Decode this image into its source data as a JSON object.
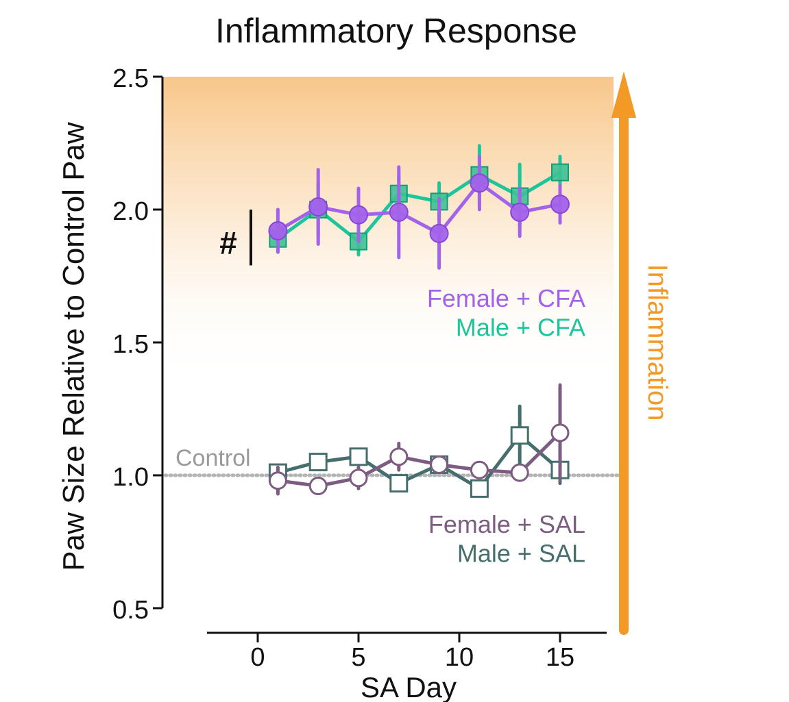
{
  "chart_data": {
    "type": "line",
    "title": "Inflammatory Response",
    "xlabel": "SA Day",
    "ylabel": "Paw Size Relative to Control Paw",
    "xlim": [
      -2.5,
      17.5
    ],
    "ylim": [
      0.5,
      2.5
    ],
    "x_ticks": [
      0,
      5,
      10,
      15
    ],
    "x_tick_labels": [
      "0",
      "5",
      "10",
      "15"
    ],
    "y_ticks": [
      0.5,
      1.0,
      1.5,
      2.0,
      2.5
    ],
    "y_tick_labels": [
      "0.5",
      "1.0",
      "1.5",
      "2.0",
      "2.5"
    ],
    "grid": false,
    "reference_line": {
      "y": 1.0,
      "label": "Control",
      "color": "#b3b3b3"
    },
    "significance_marker": {
      "label": "#",
      "y_range": [
        1.79,
        2.0
      ]
    },
    "inflammation_arrow": {
      "label": "Inflammation",
      "color": "#f39a26"
    },
    "background_gradient": {
      "from_y": 2.5,
      "to_y": 1.35,
      "color": "#f7c07c"
    },
    "series": [
      {
        "name": "Female + CFA",
        "color": "#a262ea",
        "marker": "circle",
        "filled": true,
        "x": [
          1,
          3,
          5,
          7,
          9,
          11,
          13,
          15
        ],
        "values": [
          1.92,
          2.01,
          1.98,
          1.99,
          1.91,
          2.1,
          1.99,
          2.02
        ],
        "error": [
          0.08,
          0.14,
          0.1,
          0.17,
          0.13,
          0.1,
          0.09,
          0.07
        ]
      },
      {
        "name": "Male + CFA",
        "color": "#1ec59a",
        "marker": "square",
        "filled": true,
        "x": [
          1,
          3,
          5,
          7,
          9,
          11,
          13,
          15
        ],
        "values": [
          1.89,
          2.0,
          1.88,
          2.06,
          2.03,
          2.13,
          2.05,
          2.14
        ],
        "error": [
          0.05,
          0.1,
          0.05,
          0.07,
          0.07,
          0.11,
          0.12,
          0.06
        ]
      },
      {
        "name": "Female + SAL",
        "color": "#7c5c80",
        "marker": "circle",
        "filled": false,
        "x": [
          1,
          3,
          5,
          7,
          9,
          11,
          13,
          15
        ],
        "values": [
          0.98,
          0.96,
          0.99,
          1.07,
          1.04,
          1.02,
          1.01,
          1.16
        ],
        "error": [
          0.05,
          0.02,
          0.04,
          0.05,
          0.02,
          0.02,
          0.02,
          0.18
        ]
      },
      {
        "name": "Male + SAL",
        "color": "#456e6c",
        "marker": "square",
        "filled": false,
        "x": [
          1,
          3,
          5,
          7,
          9,
          11,
          13,
          15
        ],
        "values": [
          1.01,
          1.05,
          1.07,
          0.97,
          1.04,
          0.95,
          1.15,
          1.02
        ],
        "error": [
          0.02,
          0.02,
          0.02,
          0.02,
          0.02,
          0.02,
          0.11,
          0.05
        ]
      }
    ]
  }
}
